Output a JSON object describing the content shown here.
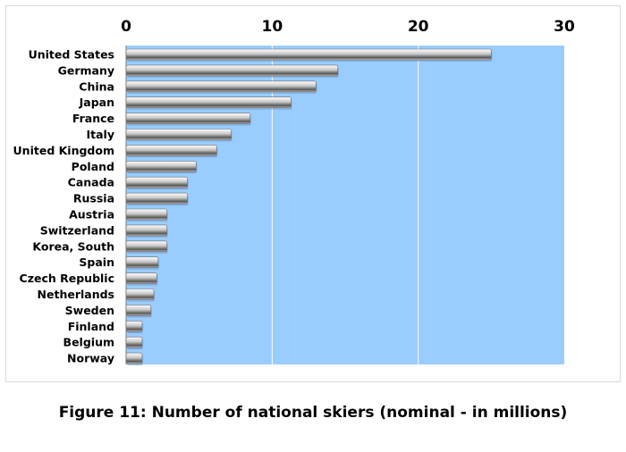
{
  "caption": "Figure 11: Number of national skiers (nominal - in millions)",
  "colors": {
    "plot_background": "#99CCFF",
    "gridline": "#FFFFFF",
    "bar_light": "#FFFFFF",
    "bar_mid": "#C8C8C8",
    "bar_dark": "#555555",
    "text": "#000000"
  },
  "chart_data": {
    "type": "bar",
    "orientation": "horizontal",
    "x_axis_position": "top",
    "grid": true,
    "xlim": [
      0,
      30
    ],
    "xticks": [
      0,
      10,
      20,
      30
    ],
    "xtick_labels": [
      "0",
      "10",
      "20",
      "30"
    ],
    "categories": [
      "United States",
      "Germany",
      "China",
      "Japan",
      "France",
      "Italy",
      "United Kingdom",
      "Poland",
      "Canada",
      "Russia",
      "Austria",
      "Switzerland",
      "Korea, South",
      "Spain",
      "Czech Republic",
      "Netherlands",
      "Sweden",
      "Finland",
      "Belgium",
      "Norway"
    ],
    "values": [
      25.0,
      14.5,
      13.0,
      11.3,
      8.5,
      7.2,
      6.2,
      4.8,
      4.2,
      4.2,
      2.8,
      2.8,
      2.8,
      2.2,
      2.1,
      1.9,
      1.7,
      1.1,
      1.1,
      1.1
    ]
  }
}
